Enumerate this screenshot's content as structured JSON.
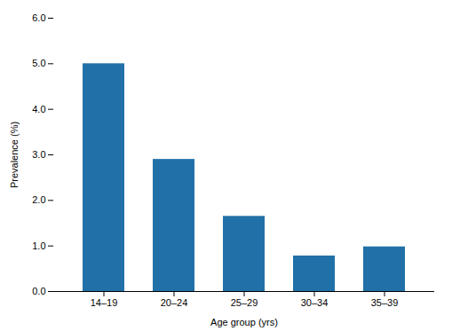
{
  "chart_data": {
    "type": "bar",
    "categories": [
      "14–19",
      "20–24",
      "25–29",
      "30–34",
      "35–39"
    ],
    "values": [
      5.0,
      2.9,
      1.65,
      0.78,
      0.98
    ],
    "color": "#2171a8",
    "xlabel": "Age group (yrs)",
    "ylabel": "Prevalence (%)",
    "ylim": [
      0.0,
      6.0
    ],
    "yticks": [
      {
        "value": 0,
        "label": "0.0"
      },
      {
        "value": 1,
        "label": "1.0"
      },
      {
        "value": 2,
        "label": "2.0"
      },
      {
        "value": 3,
        "label": "3.0"
      },
      {
        "value": 4,
        "label": "4.0"
      },
      {
        "value": 5,
        "label": "5.0"
      },
      {
        "value": 6,
        "label": "6.0"
      }
    ],
    "grid": false
  }
}
